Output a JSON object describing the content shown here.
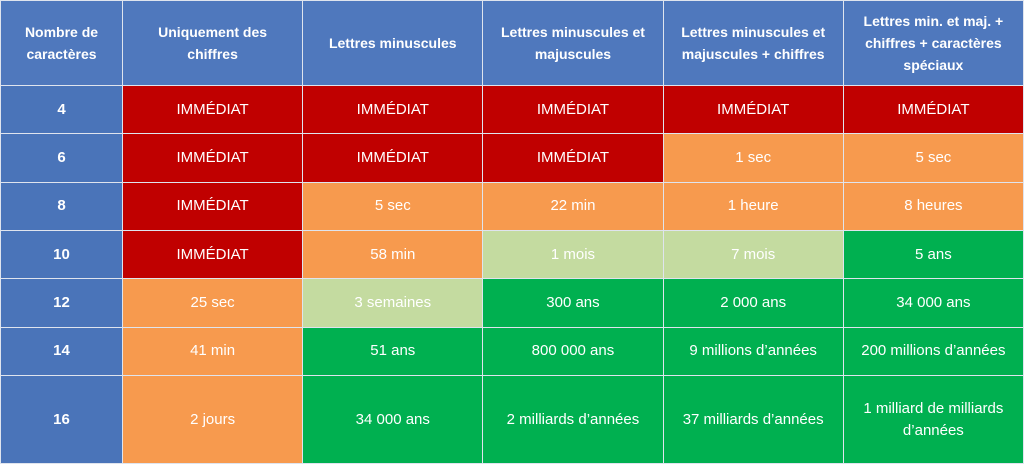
{
  "table": {
    "headers": [
      "Nombre de caractères",
      "Uniquement des chiffres",
      "Lettres minuscules",
      "Lettres minuscules et majuscules",
      "Lettres minuscules et majuscules + chiffres",
      "Lettres min. et maj. + chiffres + caractères spéciaux"
    ],
    "header_color": "#4f78bd",
    "rows": [
      [
        "4",
        "IMMÉDIAT",
        "IMMÉDIAT",
        "IMMÉDIAT",
        "IMMÉDIAT",
        "IMMÉDIAT"
      ],
      [
        "6",
        "IMMÉDIAT",
        "IMMÉDIAT",
        "IMMÉDIAT",
        "1 sec",
        "5 sec"
      ],
      [
        "8",
        "IMMÉDIAT",
        "5 sec",
        "22 min",
        "1 heure",
        "8 heures"
      ],
      [
        "10",
        "IMMÉDIAT",
        "58 min",
        "1 mois",
        "7 mois",
        "5 ans"
      ],
      [
        "12",
        "25 sec",
        "3 semaines",
        "300 ans",
        "2 000 ans",
        "34 000 ans"
      ],
      [
        "14",
        "41 min",
        "51 ans",
        "800 000 ans",
        "9 millions d’années",
        "200 millions d’années"
      ],
      [
        "16",
        "2 jours",
        "34 000 ans",
        "2 milliards d’années",
        "37 milliards d’années",
        "1 milliard de milliards d’années"
      ]
    ],
    "cell_colors": [
      [
        "#4a74b9",
        "#c00000",
        "#c00000",
        "#c00000",
        "#c00000",
        "#c00000"
      ],
      [
        "#4a74b9",
        "#c00000",
        "#c00000",
        "#c00000",
        "#f79a4e",
        "#f79a4e"
      ],
      [
        "#4a74b9",
        "#c00000",
        "#f79a4e",
        "#f79a4e",
        "#f79a4e",
        "#f79a4e"
      ],
      [
        "#4a74b9",
        "#c00000",
        "#f79a4e",
        "#c4dba0",
        "#c4dba0",
        "#00b050"
      ],
      [
        "#4a74b9",
        "#f79a4e",
        "#c4dba0",
        "#00b050",
        "#00b050",
        "#00b050"
      ],
      [
        "#4a74b9",
        "#f79a4e",
        "#00b050",
        "#00b050",
        "#00b050",
        "#00b050"
      ],
      [
        "#4a74b9",
        "#f79a4e",
        "#00b050",
        "#00b050",
        "#00b050",
        "#00b050"
      ]
    ]
  }
}
